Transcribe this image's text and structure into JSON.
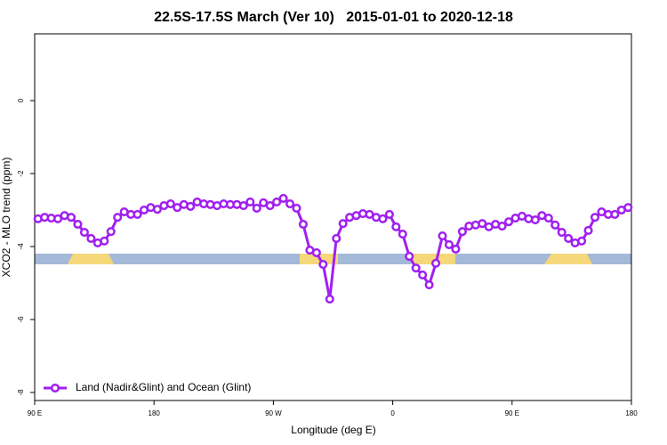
{
  "chart_data": {
    "type": "line",
    "title": "22.5S-17.5S March (Ver 10)   2015-01-01 to 2020-12-18",
    "x_label": "Longitude (deg E)",
    "y_label": "XCO2 - MLO trend (ppm)",
    "xlim": [
      90,
      540
    ],
    "ylim": [
      -8.22,
      1.83
    ],
    "xticks": [
      {
        "value": 90,
        "label": "90 E"
      },
      180,
      {
        "value": 270,
        "label": "90 W"
      },
      {
        "value": 360,
        "label": "0"
      },
      {
        "value": 450,
        "label": "90 E"
      },
      {
        "value": 540,
        "label": "180"
      }
    ],
    "yticks": [
      0,
      -2,
      -4,
      -6,
      -8
    ],
    "legend": "bottom-left",
    "x": [
      92.5,
      97.5,
      102.5,
      107.5,
      112.5,
      117.5,
      122.5,
      127.5,
      132.5,
      137.5,
      142.5,
      147.5,
      152.5,
      157.5,
      162.5,
      167.5,
      172.5,
      177.5,
      182.5,
      187.5,
      192.5,
      197.5,
      202.5,
      207.5,
      212.5,
      217.5,
      222.5,
      227.5,
      232.5,
      237.5,
      242.5,
      247.5,
      252.5,
      257.5,
      262.5,
      267.5,
      272.5,
      277.5,
      282.5,
      287.5,
      292.5,
      297.5,
      302.5,
      307.5,
      312.5,
      317.5,
      322.5,
      327.5,
      332.5,
      337.5,
      342.5,
      347.5,
      352.5,
      357.5,
      362.5,
      367.5,
      372.5,
      377.5,
      382.5,
      387.5,
      392.5,
      397.5,
      402.5,
      407.5,
      412.5,
      417.5,
      422.5,
      427.5,
      432.5,
      437.5,
      442.5,
      447.5,
      452.5,
      457.5,
      462.5,
      467.5,
      472.5,
      477.5,
      482.5,
      487.5,
      492.5,
      497.5,
      502.5,
      507.5,
      512.5,
      517.5,
      522.5,
      527.5,
      532.5,
      537.5
    ],
    "series": [
      {
        "name": "Land (Nadir&Glint) and Ocean (Glint)",
        "color": "#a020f0",
        "values": [
          -3.24,
          -3.2,
          -3.22,
          -3.24,
          -3.15,
          -3.2,
          -3.39,
          -3.61,
          -3.78,
          -3.9,
          -3.85,
          -3.59,
          -3.2,
          -3.05,
          -3.12,
          -3.12,
          -3.0,
          -2.93,
          -2.98,
          -2.88,
          -2.83,
          -2.93,
          -2.85,
          -2.9,
          -2.78,
          -2.83,
          -2.85,
          -2.88,
          -2.83,
          -2.85,
          -2.85,
          -2.88,
          -2.78,
          -2.95,
          -2.8,
          -2.88,
          -2.78,
          -2.68,
          -2.83,
          -2.95,
          -3.39,
          -4.1,
          -4.17,
          -4.49,
          -5.44,
          -3.78,
          -3.37,
          -3.2,
          -3.15,
          -3.1,
          -3.12,
          -3.2,
          -3.24,
          -3.12,
          -3.46,
          -3.66,
          -4.27,
          -4.59,
          -4.78,
          -5.05,
          -4.46,
          -3.71,
          -3.95,
          -4.07,
          -3.59,
          -3.44,
          -3.41,
          -3.37,
          -3.46,
          -3.39,
          -3.44,
          -3.32,
          -3.22,
          -3.17,
          -3.24,
          -3.27,
          -3.15,
          -3.22,
          -3.41,
          -3.61,
          -3.78,
          -3.9,
          -3.85,
          -3.56,
          -3.2,
          -3.05,
          -3.12,
          -3.12,
          -3.0,
          -2.93
        ]
      }
    ]
  }
}
